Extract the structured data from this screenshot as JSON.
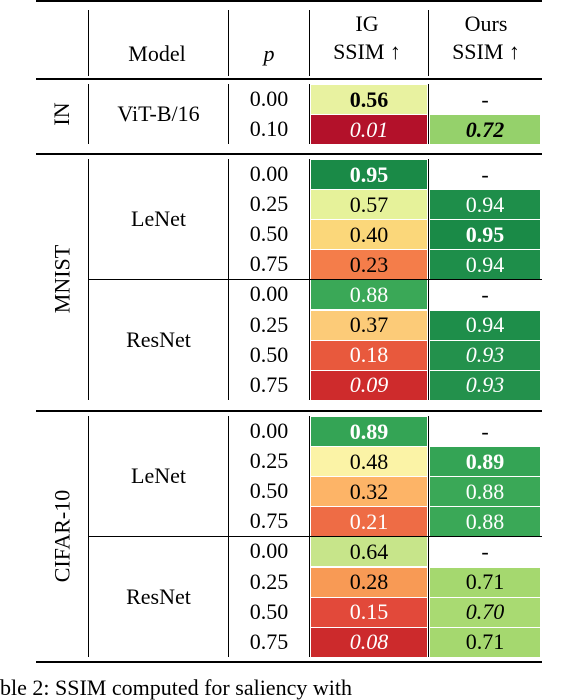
{
  "header": {
    "model": "Model",
    "p": "p",
    "ig_line1": "IG",
    "ig_line2": "SSIM ↑",
    "ours_line1": "Ours",
    "ours_line2": "SSIM ↑"
  },
  "groups": [
    {
      "dataset": "IN",
      "models": [
        {
          "name": "ViT-B/16",
          "rows": [
            {
              "p": "0.00",
              "ig": "0.56",
              "ig_style": "bold",
              "ig_color": "#e8f2a0",
              "ours": "-",
              "ours_style": "normal",
              "ours_color": ""
            },
            {
              "p": "0.10",
              "ig": "0.01",
              "ig_style": "italic",
              "ig_color": "#b3112a",
              "ours": "0.72",
              "ours_style": "bold-italic",
              "ours_color": "#95d16b"
            }
          ]
        }
      ]
    },
    {
      "dataset": "MNIST",
      "models": [
        {
          "name": "LeNet",
          "rows": [
            {
              "p": "0.00",
              "ig": "0.95",
              "ig_style": "bold",
              "ig_color": "#1a8a47",
              "ours": "-",
              "ours_style": "normal",
              "ours_color": ""
            },
            {
              "p": "0.25",
              "ig": "0.57",
              "ig_style": "normal",
              "ig_color": "#e6f29a",
              "ours": "0.94",
              "ours_style": "normal",
              "ours_color": "#1e8e4a"
            },
            {
              "p": "0.50",
              "ig": "0.40",
              "ig_style": "normal",
              "ig_color": "#fbd77a",
              "ours": "0.95",
              "ours_style": "bold",
              "ours_color": "#1a8a47"
            },
            {
              "p": "0.75",
              "ig": "0.23",
              "ig_style": "normal",
              "ig_color": "#f47d4a",
              "ours": "0.94",
              "ours_style": "normal",
              "ours_color": "#1e8e4a"
            }
          ]
        },
        {
          "name": "ResNet",
          "rows": [
            {
              "p": "0.00",
              "ig": "0.88",
              "ig_style": "normal",
              "ig_color": "#3aa857",
              "ours": "-",
              "ours_style": "normal",
              "ours_color": ""
            },
            {
              "p": "0.25",
              "ig": "0.37",
              "ig_style": "normal",
              "ig_color": "#fccb78",
              "ours": "0.94",
              "ours_style": "normal",
              "ours_color": "#1e8e4a"
            },
            {
              "p": "0.50",
              "ig": "0.18",
              "ig_style": "normal",
              "ig_color": "#e8593d",
              "ours": "0.93",
              "ours_style": "italic",
              "ours_color": "#23914c"
            },
            {
              "p": "0.75",
              "ig": "0.09",
              "ig_style": "italic",
              "ig_color": "#ce2b2c",
              "ours": "0.93",
              "ours_style": "italic",
              "ours_color": "#23914c"
            }
          ]
        }
      ]
    },
    {
      "dataset": "CIFAR-10",
      "models": [
        {
          "name": "LeNet",
          "rows": [
            {
              "p": "0.00",
              "ig": "0.89",
              "ig_style": "bold",
              "ig_color": "#34a455",
              "ours": "-",
              "ours_style": "normal",
              "ours_color": ""
            },
            {
              "p": "0.25",
              "ig": "0.48",
              "ig_style": "normal",
              "ig_color": "#fbf3a6",
              "ours": "0.89",
              "ours_style": "bold",
              "ours_color": "#34a455"
            },
            {
              "p": "0.50",
              "ig": "0.32",
              "ig_style": "normal",
              "ig_color": "#fdb467",
              "ours": "0.88",
              "ours_style": "normal",
              "ours_color": "#3aa857"
            },
            {
              "p": "0.75",
              "ig": "0.21",
              "ig_style": "normal",
              "ig_color": "#ee6c45",
              "ours": "0.88",
              "ours_style": "normal",
              "ours_color": "#3aa857"
            }
          ]
        },
        {
          "name": "ResNet",
          "rows": [
            {
              "p": "0.00",
              "ig": "0.64",
              "ig_style": "normal",
              "ig_color": "#c7e58a",
              "ours": "-",
              "ours_style": "normal",
              "ours_color": ""
            },
            {
              "p": "0.25",
              "ig": "0.28",
              "ig_style": "normal",
              "ig_color": "#f89a55",
              "ours": "0.71",
              "ours_style": "normal",
              "ours_color": "#a5d86f"
            },
            {
              "p": "0.50",
              "ig": "0.15",
              "ig_style": "normal",
              "ig_color": "#e2493a",
              "ours": "0.70",
              "ours_style": "italic",
              "ours_color": "#a9da72"
            },
            {
              "p": "0.75",
              "ig": "0.08",
              "ig_style": "italic",
              "ig_color": "#cc2a2c",
              "ours": "0.71",
              "ours_style": "normal",
              "ours_color": "#a5d86f"
            }
          ]
        }
      ]
    }
  ],
  "caption": "ble 2: SSIM computed for saliency with"
}
